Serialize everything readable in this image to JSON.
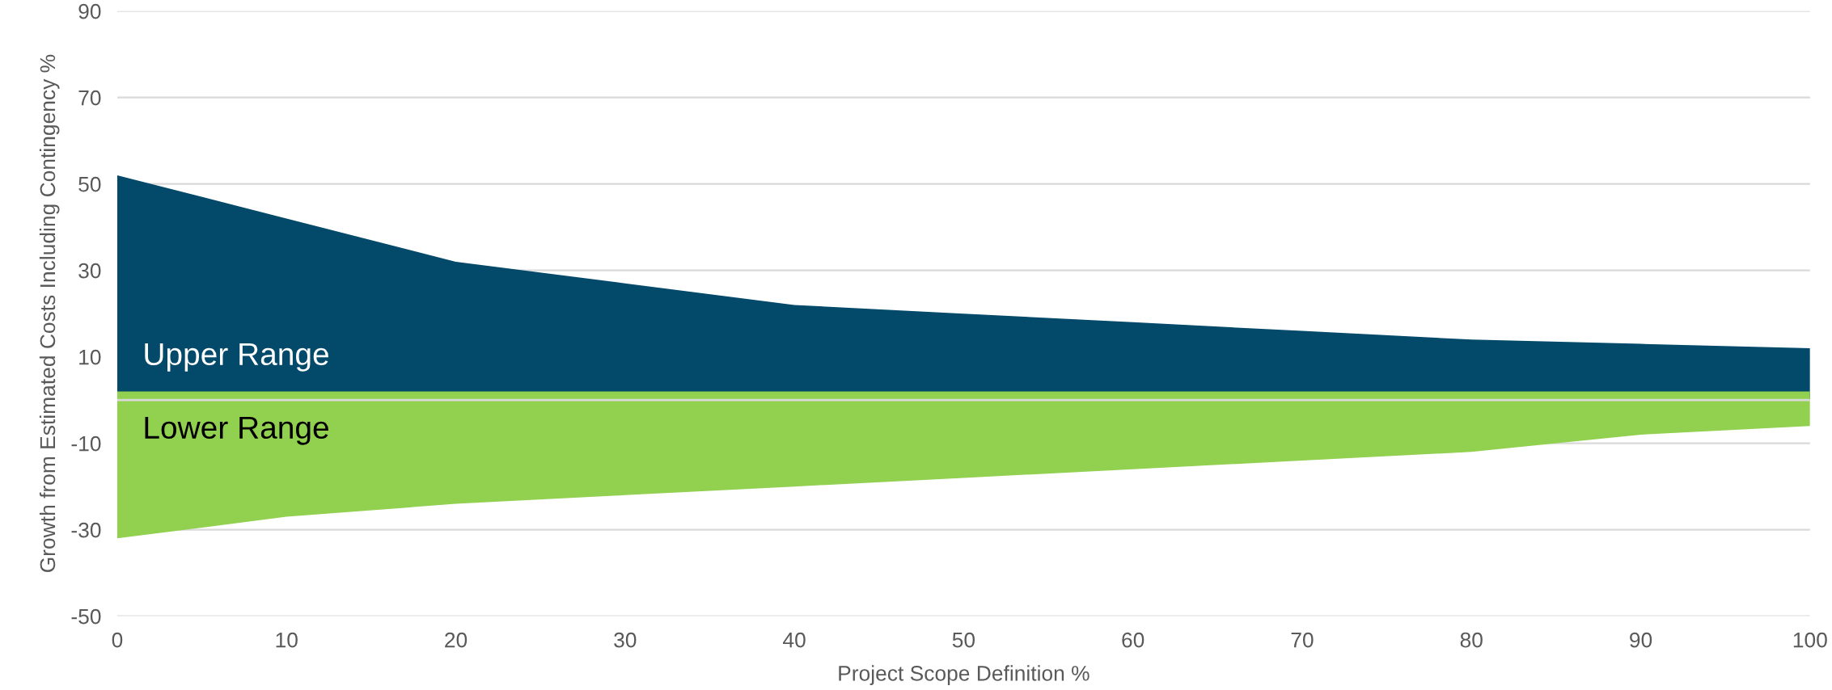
{
  "chart_data": {
    "type": "area",
    "xlabel": "Project Scope Definition %",
    "ylabel": "Growth from Estimated Costs Including Contingency %",
    "x": [
      0,
      10,
      20,
      30,
      40,
      50,
      60,
      70,
      80,
      90,
      100
    ],
    "series": [
      {
        "name": "Upper Range",
        "color": "#02496a",
        "values": [
          52,
          42,
          32,
          27,
          22,
          20,
          18,
          16,
          14,
          13,
          12
        ]
      },
      {
        "name": "Lower Range",
        "color": "#92d050",
        "values": [
          -32,
          -27,
          -24,
          -22,
          -20,
          -18,
          -16,
          -14,
          -12,
          -8,
          -6
        ]
      }
    ],
    "bands": [
      {
        "axis": "y",
        "from": 0,
        "to": 2,
        "color": "#92d050"
      }
    ],
    "xlim": [
      0,
      100
    ],
    "xticks": [
      0,
      10,
      20,
      30,
      40,
      50,
      60,
      70,
      80,
      90,
      100
    ],
    "ylim": [
      -50,
      90
    ],
    "yticks": [
      -50,
      -30,
      -10,
      10,
      30,
      50,
      70,
      90
    ],
    "grid": "y",
    "legend": false
  }
}
